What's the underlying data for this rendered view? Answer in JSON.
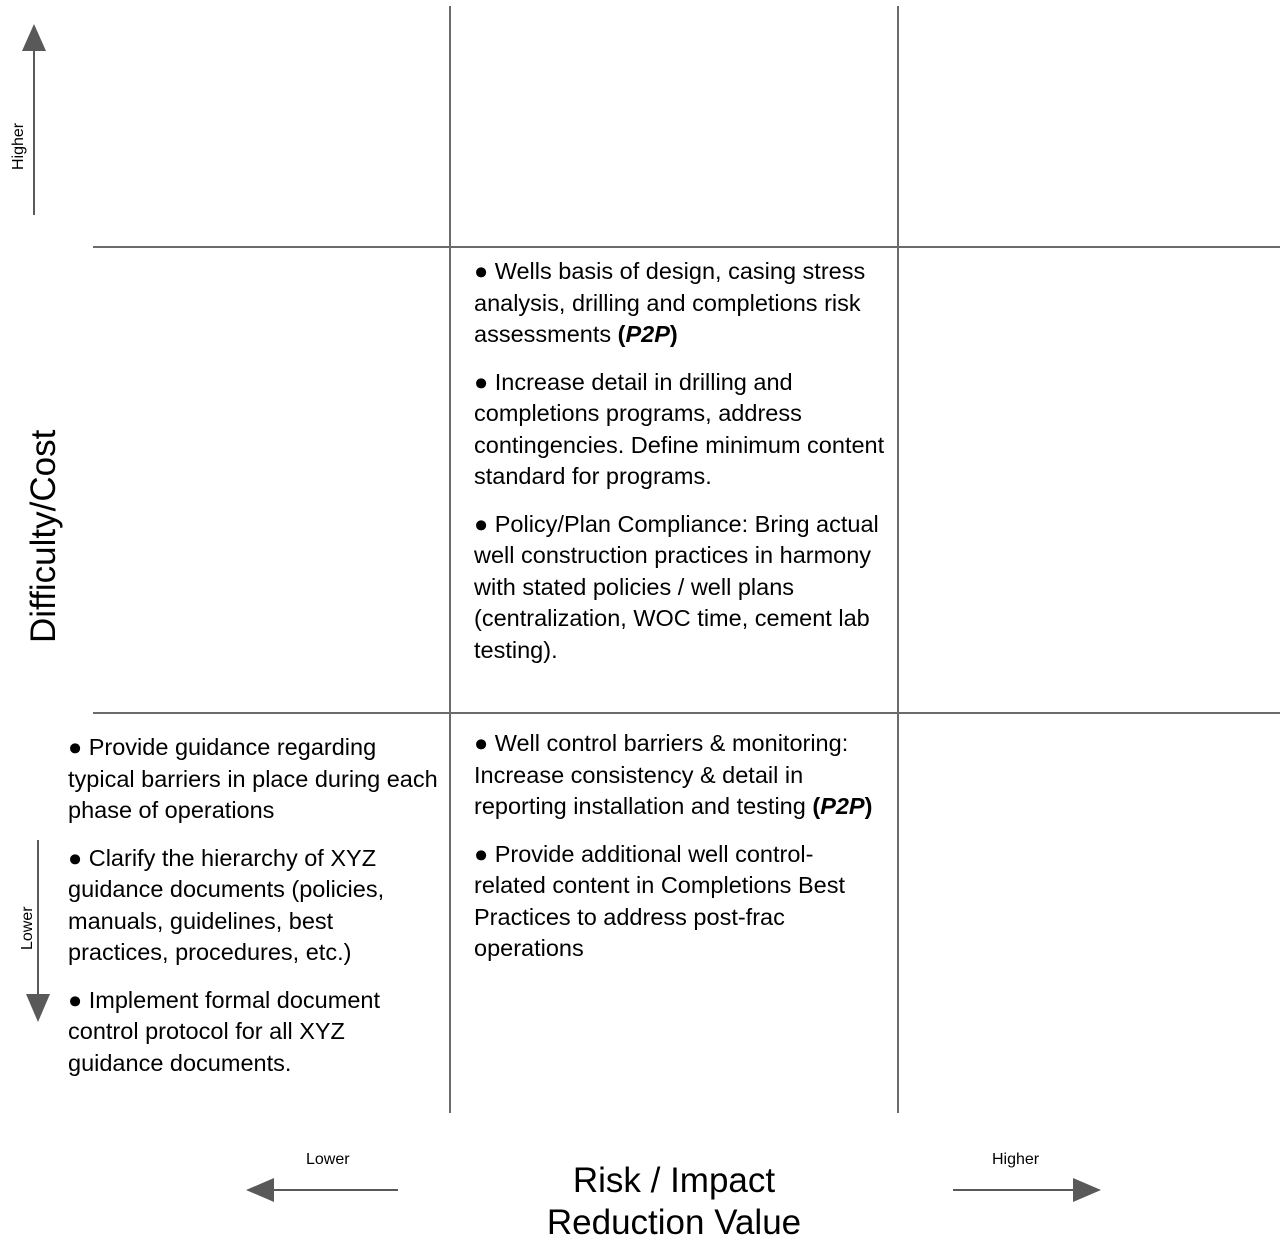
{
  "y_axis": {
    "title": "Difficulty/Cost",
    "high_label": "Higher",
    "low_label": "Lower"
  },
  "x_axis": {
    "title_line1": "Risk / Impact",
    "title_line2": "Reduction Value",
    "low_label": "Lower",
    "high_label": "Higher"
  },
  "bullet": "●",
  "cells": {
    "middle_center": [
      {
        "text": "Wells basis of design, casing stress analysis, drilling and completions risk assessments",
        "suffix": "P2P"
      },
      {
        "text": "Increase detail in drilling and completions programs, address contingencies.  Define minimum content standard for programs.",
        "suffix": ""
      },
      {
        "text": "Policy/Plan Compliance:  Bring actual well construction practices in harmony with stated policies / well plans (centralization, WOC time, cement lab testing).",
        "suffix": ""
      }
    ],
    "bottom_left": [
      {
        "text": "Provide guidance regarding typical barriers in place during each phase of operations",
        "suffix": ""
      },
      {
        "text": "Clarify the hierarchy of XYZ guidance documents (policies, manuals, guidelines, best practices, procedures, etc.)",
        "suffix": ""
      },
      {
        "text": "Implement formal document control protocol for all XYZ guidance documents.",
        "suffix": ""
      }
    ],
    "bottom_center": [
      {
        "text": "Well control barriers & monitoring:  Increase consistency & detail in reporting installation and testing",
        "suffix": "P2P"
      },
      {
        "text": "Provide additional well control-related content in Completions Best Practices to address post-frac operations",
        "suffix": ""
      }
    ]
  },
  "colors": {
    "grid_line": "#6b6b6b",
    "arrow": "#595959",
    "text": "#000000"
  }
}
